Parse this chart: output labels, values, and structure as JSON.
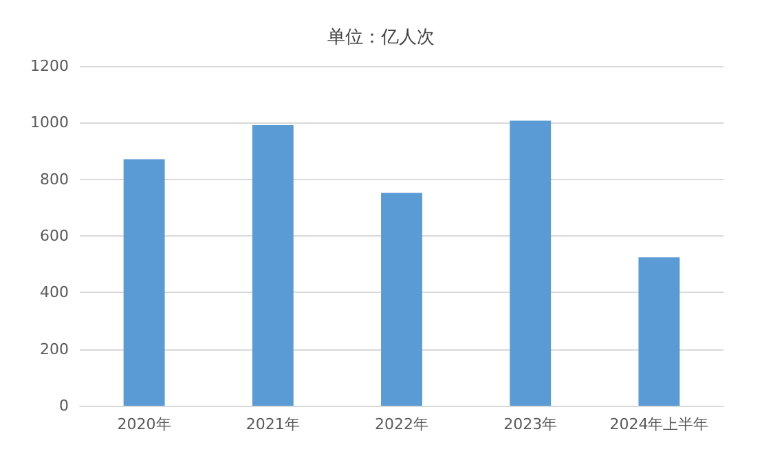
{
  "chart_data": {
    "type": "bar",
    "title": "单位：亿人次",
    "categories": [
      "2020年",
      "2021年",
      "2022年",
      "2023年",
      "2024年上半年"
    ],
    "values": [
      871,
      991,
      752,
      1007,
      524
    ],
    "color": "#5b9bd5",
    "ylim": [
      0,
      1200
    ],
    "yticks": [
      0,
      200,
      400,
      600,
      800,
      1000,
      1200
    ],
    "grid": "y"
  }
}
